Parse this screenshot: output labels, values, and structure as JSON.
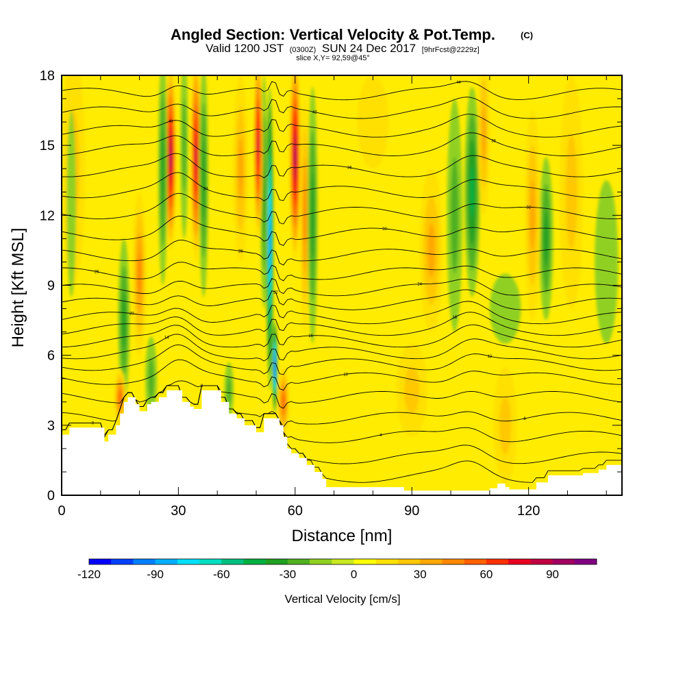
{
  "chart_data": {
    "type": "heatmap",
    "title": "Angled Section: Vertical Velocity & Pot.Temp.",
    "title_suffix": "(C)",
    "subtitle_main_a": "Valid 1200 JST",
    "subtitle_small_a": "(0300Z)",
    "subtitle_main_b": "SUN 24 Dec 2017",
    "subtitle_small_b": "[9hrFcst@2229z]",
    "subtitle2": "slice X,Y= 92,59@45°",
    "xlabel": "Distance [nm]",
    "ylabel": "Height [Kft MSL]",
    "xlim": [
      0,
      144
    ],
    "ylim": [
      0,
      18
    ],
    "x_ticks": [
      "0",
      "30",
      "60",
      "90",
      "120"
    ],
    "y_ticks": [
      "0",
      "3",
      "6",
      "9",
      "12",
      "15",
      "18"
    ],
    "colorbar": {
      "label": "Vertical Velocity [cm/s]",
      "tick_labels": [
        "-120",
        "-90",
        "-60",
        "-30",
        "0",
        "30",
        "60",
        "90"
      ],
      "range": [
        -120,
        110
      ],
      "step": 10,
      "colors": [
        "#0000ff",
        "#0040ff",
        "#0080ff",
        "#00b0ff",
        "#00e0ff",
        "#00e0c0",
        "#00c080",
        "#00b040",
        "#20a020",
        "#50b020",
        "#90d020",
        "#c8e820",
        "#ffff00",
        "#ffe000",
        "#ffc800",
        "#ffa800",
        "#ff8800",
        "#ff6000",
        "#ff3000",
        "#e80020",
        "#c00040",
        "#a00060",
        "#800080"
      ]
    },
    "terrain_profile": [
      [
        0,
        2.6
      ],
      [
        2,
        2.9
      ],
      [
        10,
        2.9
      ],
      [
        11,
        2.3
      ],
      [
        12,
        2.6
      ],
      [
        14,
        3.0
      ],
      [
        15,
        3.5
      ],
      [
        16,
        4.0
      ],
      [
        17,
        4.2
      ],
      [
        19,
        3.9
      ],
      [
        20,
        3.6
      ],
      [
        21,
        3.6
      ],
      [
        22,
        3.9
      ],
      [
        23,
        4.0
      ],
      [
        25,
        4.2
      ],
      [
        27,
        4.5
      ],
      [
        29,
        4.5
      ],
      [
        31,
        4.0
      ],
      [
        33,
        3.8
      ],
      [
        34,
        3.7
      ],
      [
        36,
        4.5
      ],
      [
        39,
        4.5
      ],
      [
        41,
        4.0
      ],
      [
        43,
        3.5
      ],
      [
        45,
        3.3
      ],
      [
        47,
        3.0
      ],
      [
        48,
        3.0
      ],
      [
        50,
        2.7
      ],
      [
        52,
        3.3
      ],
      [
        54,
        3.3
      ],
      [
        56,
        3.0
      ],
      [
        57,
        2.5
      ],
      [
        58,
        2.0
      ],
      [
        59,
        1.8
      ],
      [
        61,
        1.6
      ],
      [
        63,
        1.3
      ],
      [
        65,
        1.0
      ],
      [
        67,
        0.7
      ],
      [
        68,
        0.35
      ],
      [
        85,
        0.35
      ],
      [
        88,
        0.2
      ],
      [
        105,
        0.2
      ],
      [
        110,
        0.3
      ],
      [
        112,
        0.5
      ],
      [
        114,
        0.35
      ],
      [
        115,
        0.25
      ],
      [
        122,
        0.55
      ],
      [
        125,
        0.85
      ],
      [
        130,
        0.85
      ],
      [
        134,
        0.95
      ],
      [
        138,
        1.1
      ],
      [
        140,
        1.3
      ],
      [
        144,
        1.3
      ]
    ],
    "cells": [
      {
        "x": 28.0,
        "y": 14.5,
        "sx": 1.5,
        "sy": 4.0,
        "v": 95
      },
      {
        "x": 34.5,
        "y": 14.5,
        "sx": 1.4,
        "sy": 4.5,
        "v": 85
      },
      {
        "x": 26.0,
        "y": 14.0,
        "sx": 1.2,
        "sy": 5.0,
        "v": -35
      },
      {
        "x": 36.5,
        "y": 13.5,
        "sx": 1.2,
        "sy": 5.0,
        "v": -30
      },
      {
        "x": 31.5,
        "y": 15.0,
        "sx": 1.0,
        "sy": 4.0,
        "v": -20
      },
      {
        "x": 53.5,
        "y": 11.0,
        "sx": 1.0,
        "sy": 6.5,
        "v": -95
      },
      {
        "x": 54.8,
        "y": 5.5,
        "sx": 0.7,
        "sy": 2.0,
        "v": -110
      },
      {
        "x": 52.0,
        "y": 13.0,
        "sx": 0.9,
        "sy": 5.0,
        "v": -30
      },
      {
        "x": 50.5,
        "y": 15.0,
        "sx": 1.2,
        "sy": 4.0,
        "v": 85
      },
      {
        "x": 60.0,
        "y": 14.5,
        "sx": 1.5,
        "sy": 4.5,
        "v": 95
      },
      {
        "x": 62.5,
        "y": 12.0,
        "sx": 1.2,
        "sy": 5.0,
        "v": 40
      },
      {
        "x": 64.5,
        "y": 12.0,
        "sx": 1.3,
        "sy": 5.5,
        "v": -35
      },
      {
        "x": 57.0,
        "y": 4.0,
        "sx": 1.5,
        "sy": 1.5,
        "v": 50
      },
      {
        "x": 16.0,
        "y": 7.5,
        "sx": 1.5,
        "sy": 3.5,
        "v": -30
      },
      {
        "x": 20.0,
        "y": 9.5,
        "sx": 1.8,
        "sy": 3.5,
        "v": 45
      },
      {
        "x": 15.0,
        "y": 4.2,
        "sx": 1.5,
        "sy": 1.2,
        "v": 50
      },
      {
        "x": 23.0,
        "y": 5.0,
        "sx": 1.5,
        "sy": 1.8,
        "v": -20
      },
      {
        "x": 46.0,
        "y": 14.0,
        "sx": 2.0,
        "sy": 4.0,
        "v": 30
      },
      {
        "x": 43.0,
        "y": 4.5,
        "sx": 1.2,
        "sy": 1.2,
        "v": -25
      },
      {
        "x": 3.0,
        "y": 14.0,
        "sx": 3.0,
        "sy": 5.0,
        "v": 25
      },
      {
        "x": 2.5,
        "y": 12.5,
        "sx": 1.2,
        "sy": 4.0,
        "v": -15
      },
      {
        "x": 105.5,
        "y": 13.0,
        "sx": 2.0,
        "sy": 4.5,
        "v": -40
      },
      {
        "x": 108.5,
        "y": 15.5,
        "sx": 1.5,
        "sy": 3.5,
        "v": 30
      },
      {
        "x": 101.0,
        "y": 12.0,
        "sx": 2.0,
        "sy": 5.0,
        "v": -20
      },
      {
        "x": 95.0,
        "y": 10.5,
        "sx": 3.0,
        "sy": 3.5,
        "v": 30
      },
      {
        "x": 124.5,
        "y": 11.0,
        "sx": 1.8,
        "sy": 3.5,
        "v": -35
      },
      {
        "x": 121.0,
        "y": 12.0,
        "sx": 2.0,
        "sy": 4.5,
        "v": 35
      },
      {
        "x": 131.0,
        "y": 13.0,
        "sx": 3.0,
        "sy": 5.0,
        "v": 25
      },
      {
        "x": 114.0,
        "y": 8.0,
        "sx": 4.0,
        "sy": 1.5,
        "v": -12
      },
      {
        "x": 140.0,
        "y": 10.0,
        "sx": 3.0,
        "sy": 3.5,
        "v": -12
      },
      {
        "x": 90.0,
        "y": 4.5,
        "sx": 4.0,
        "sy": 2.0,
        "v": 20
      },
      {
        "x": 114.0,
        "y": 3.0,
        "sx": 3.0,
        "sy": 2.5,
        "v": 25
      },
      {
        "x": 80.0,
        "y": 16.0,
        "sx": 4.0,
        "sy": 2.0,
        "v": 15
      }
    ],
    "isentropes": [
      {
        "base": 0.8,
        "label": "0"
      },
      {
        "base": 1.6,
        "label": "2"
      },
      {
        "base": 2.5,
        "label": "4"
      },
      {
        "base": 3.3,
        "label": "6"
      },
      {
        "base": 4.2,
        "label": "8"
      },
      {
        "base": 5.0,
        "label": "10"
      },
      {
        "base": 5.6,
        "label": "12"
      },
      {
        "base": 6.1,
        "label": "14"
      },
      {
        "base": 6.6,
        "label": "16"
      },
      {
        "base": 7.1,
        "label": "18"
      },
      {
        "base": 7.6,
        "label": "20"
      },
      {
        "base": 8.2,
        "label": "22"
      },
      {
        "base": 8.8,
        "label": "24"
      },
      {
        "base": 9.5,
        "label": "26"
      },
      {
        "base": 10.3,
        "label": "28"
      },
      {
        "base": 11.2,
        "label": "30"
      },
      {
        "base": 12.1,
        "label": "32"
      },
      {
        "base": 13.0,
        "label": "34"
      },
      {
        "base": 13.9,
        "label": "36"
      },
      {
        "base": 14.8,
        "label": "38"
      },
      {
        "base": 15.6,
        "label": "40"
      },
      {
        "base": 16.4,
        "label": "42"
      },
      {
        "base": 17.2,
        "label": "44"
      }
    ],
    "grid": false,
    "legend": "bottom-colorbar"
  }
}
